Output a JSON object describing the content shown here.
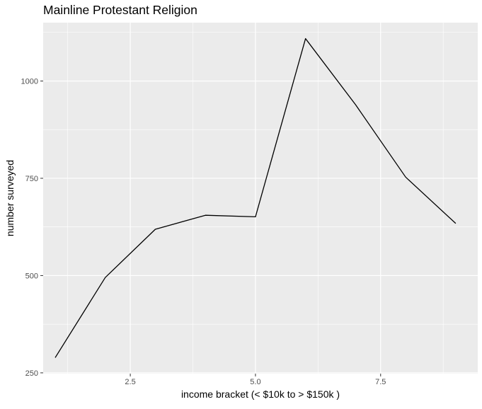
{
  "chart_data": {
    "type": "line",
    "title": "Mainline Protestant Religion",
    "xlabel": "income bracket (< $10k to > $150k )",
    "ylabel": "number surveyed",
    "x": [
      1,
      2,
      3,
      4,
      5,
      6,
      7,
      8,
      9
    ],
    "y": [
      289,
      495,
      619,
      655,
      651,
      1109,
      939,
      753,
      634
    ],
    "xlim": [
      0.76,
      9.44
    ],
    "ylim": [
      248,
      1150
    ],
    "x_ticks": [
      2.5,
      5.0,
      7.5
    ],
    "x_tick_labels": [
      "2.5",
      "5.0",
      "7.5"
    ],
    "x_minor_ticks": [
      1.25,
      3.75,
      6.25,
      8.75
    ],
    "y_ticks": [
      250,
      500,
      750,
      1000
    ],
    "y_tick_labels": [
      "250",
      "500",
      "750",
      "1000"
    ],
    "y_minor_ticks": [
      375,
      625,
      875,
      1125
    ],
    "grid": true,
    "legend": "none",
    "colors": {
      "panel_background": "#ebebeb",
      "grid_major": "#ffffff",
      "line": "#000000",
      "tick_label": "#4d4d4d",
      "text": "#000000"
    }
  }
}
